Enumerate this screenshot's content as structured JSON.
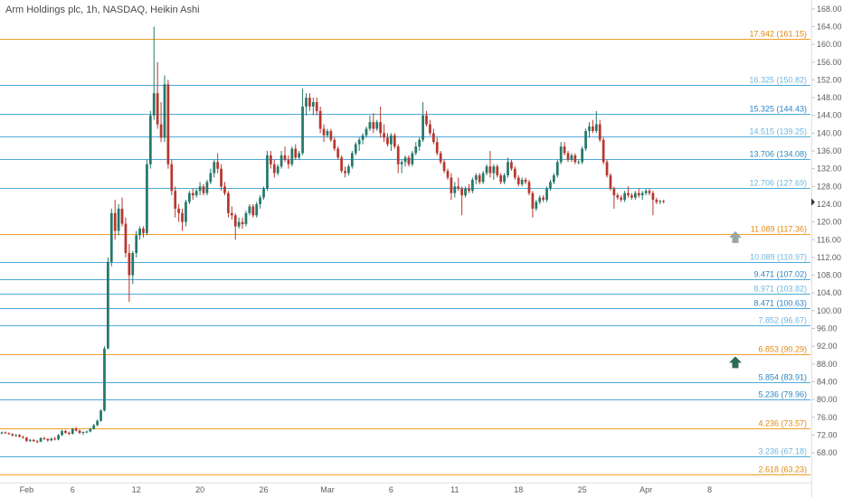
{
  "chart_data": {
    "type": "candlestick",
    "title": "Arm Holdings plc, 1h, NASDAQ, Heikin Ashi",
    "ylim": [
      61.5,
      170
    ],
    "y_ticks": [
      68,
      72,
      76,
      80,
      84,
      88,
      92,
      96,
      100,
      104,
      108,
      112,
      116,
      120,
      124,
      128,
      132,
      136,
      140,
      144,
      148,
      152,
      156,
      160,
      164,
      168
    ],
    "x_ticks": [
      "Feb",
      "6",
      "12",
      "20",
      "26",
      "Mar",
      "6",
      "11",
      "18",
      "25",
      "Apr",
      "8"
    ],
    "x_tick_index": [
      7,
      20,
      38,
      56,
      74,
      92,
      110,
      128,
      146,
      164,
      182,
      200
    ],
    "x_domain": [
      0,
      206
    ],
    "last_price": 124.5,
    "colors": {
      "up": "#26786a",
      "down": "#b5382f",
      "fib_major": "#f0a030",
      "fib_minor": "#4fa9d8",
      "arrow_grey": "#9aa6a2",
      "arrow_green": "#2e6b5a"
    },
    "fib_levels": [
      {
        "ratio": "17.942",
        "price": 161.15,
        "label": "17.942 (161.15)",
        "kind": "major",
        "text_color": "#e08a10"
      },
      {
        "ratio": "16.325",
        "price": 150.82,
        "label": "16.325 (150.82)",
        "kind": "minor",
        "text_color": "#6fb6df"
      },
      {
        "ratio": "15.325",
        "price": 144.43,
        "label": "15.325 (144.43)",
        "kind": "minor",
        "text_color": "#2e86c1"
      },
      {
        "ratio": "14.515",
        "price": 139.25,
        "label": "14.515 (139.25)",
        "kind": "minor",
        "text_color": "#6fb6df"
      },
      {
        "ratio": "13.706",
        "price": 134.08,
        "label": "13.706 (134.08)",
        "kind": "minor",
        "text_color": "#2e86c1"
      },
      {
        "ratio": "12.706",
        "price": 127.69,
        "label": "12.706 (127.69)",
        "kind": "minor",
        "text_color": "#6fb6df"
      },
      {
        "ratio": "11.089",
        "price": 117.36,
        "label": "11.089 (117.36)",
        "kind": "major",
        "text_color": "#e08a10"
      },
      {
        "ratio": "10.089",
        "price": 110.97,
        "label": "10.089 (110.97)",
        "kind": "minor",
        "text_color": "#6fb6df"
      },
      {
        "ratio": "9.471",
        "price": 107.02,
        "label": "9.471 (107.02)",
        "kind": "minor",
        "text_color": "#2e86c1"
      },
      {
        "ratio": "8.971",
        "price": 103.82,
        "label": "8.971 (103.82)",
        "kind": "minor",
        "text_color": "#6fb6df"
      },
      {
        "ratio": "8.471",
        "price": 100.63,
        "label": "8.471 (100.63)",
        "kind": "minor",
        "text_color": "#2e86c1"
      },
      {
        "ratio": "7.852",
        "price": 96.67,
        "label": "7.852 (96.67)",
        "kind": "minor",
        "text_color": "#6fb6df"
      },
      {
        "ratio": "6.853",
        "price": 90.29,
        "label": "6.853 (90.29)",
        "kind": "major",
        "text_color": "#e08a10"
      },
      {
        "ratio": "5.854",
        "price": 83.91,
        "label": "5.854 (83.91)",
        "kind": "minor",
        "text_color": "#2e86c1"
      },
      {
        "ratio": "5.236",
        "price": 79.96,
        "label": "5.236 (79.96)",
        "kind": "minor",
        "text_color": "#2e86c1"
      },
      {
        "ratio": "4.236",
        "price": 73.57,
        "label": "4.236 (73.57)",
        "kind": "major",
        "text_color": "#e08a10"
      },
      {
        "ratio": "3.236",
        "price": 67.18,
        "label": "3.236 (67.18)",
        "kind": "minor",
        "text_color": "#6fb6df"
      },
      {
        "ratio": "2.618",
        "price": 63.23,
        "label": "2.618 (63.23)",
        "kind": "major",
        "text_color": "#e08a10"
      }
    ],
    "arrows": [
      {
        "price": 116.5,
        "color_key": "arrow_grey"
      },
      {
        "price": 88.3,
        "color_key": "arrow_green"
      }
    ],
    "candles": [
      [
        72.5,
        72.8,
        72.1,
        72.6
      ],
      [
        72.6,
        72.8,
        72.3,
        72.4
      ],
      [
        72.4,
        72.6,
        72.1,
        72.2
      ],
      [
        72.2,
        72.4,
        71.7,
        71.9
      ],
      [
        71.9,
        72.2,
        71.6,
        72.0
      ],
      [
        72.0,
        72.2,
        71.5,
        71.6
      ],
      [
        71.6,
        71.8,
        71.2,
        71.4
      ],
      [
        71.4,
        71.6,
        70.4,
        70.7
      ],
      [
        70.7,
        71.1,
        70.4,
        70.9
      ],
      [
        70.9,
        71.1,
        70.5,
        70.6
      ],
      [
        70.6,
        70.9,
        70.2,
        70.5
      ],
      [
        70.5,
        71.5,
        70.4,
        71.3
      ],
      [
        71.3,
        71.6,
        70.9,
        71.1
      ],
      [
        71.1,
        71.3,
        70.5,
        70.8
      ],
      [
        70.8,
        71.4,
        70.6,
        71.2
      ],
      [
        71.2,
        71.6,
        70.8,
        71.0
      ],
      [
        71.0,
        72.2,
        70.8,
        72.0
      ],
      [
        72.0,
        73.2,
        71.8,
        72.9
      ],
      [
        72.9,
        73.2,
        72.3,
        72.5
      ],
      [
        72.5,
        72.8,
        72.0,
        72.3
      ],
      [
        72.3,
        73.6,
        72.1,
        73.4
      ],
      [
        73.4,
        73.8,
        72.8,
        73.0
      ],
      [
        73.0,
        73.2,
        72.2,
        72.5
      ],
      [
        72.5,
        72.8,
        72.0,
        72.7
      ],
      [
        72.7,
        73.0,
        72.4,
        72.8
      ],
      [
        72.8,
        73.6,
        72.6,
        73.4
      ],
      [
        73.4,
        74.5,
        73.2,
        74.2
      ],
      [
        74.2,
        75.5,
        74.0,
        75.2
      ],
      [
        75.2,
        77.8,
        75.0,
        77.5
      ],
      [
        77.5,
        92.0,
        77.3,
        91.5
      ],
      [
        91.5,
        112.0,
        91.3,
        111.0
      ],
      [
        111.0,
        123.0,
        110.0,
        122.0
      ],
      [
        122.0,
        125.0,
        116.0,
        118.0
      ],
      [
        118.0,
        124.0,
        117.0,
        123.0
      ],
      [
        123.0,
        125.5,
        119.0,
        119.6
      ],
      [
        119.6,
        121.0,
        112.0,
        113.0
      ],
      [
        113.0,
        115.0,
        102.0,
        108.0
      ],
      [
        108.0,
        113.5,
        106.0,
        113.0
      ],
      [
        113.0,
        118.0,
        112.0,
        117.0
      ],
      [
        117.0,
        119.0,
        116.0,
        118.5
      ],
      [
        118.5,
        119.0,
        116.5,
        117.5
      ],
      [
        117.5,
        134.0,
        117.0,
        133.0
      ],
      [
        133.0,
        145.0,
        132.0,
        144.0
      ],
      [
        144.0,
        164.0,
        143.0,
        149.0
      ],
      [
        149.0,
        156.0,
        141.0,
        142.0
      ],
      [
        142.0,
        147.0,
        138.0,
        139.0
      ],
      [
        139.0,
        153.0,
        138.0,
        151.0
      ],
      [
        151.0,
        152.0,
        132.0,
        133.0
      ],
      [
        133.0,
        134.0,
        126.0,
        127.0
      ],
      [
        127.0,
        128.0,
        121.0,
        123.0
      ],
      [
        123.0,
        124.0,
        120.0,
        122.0
      ],
      [
        122.0,
        123.0,
        118.0,
        120.0
      ],
      [
        120.0,
        125.0,
        119.0,
        124.5
      ],
      [
        124.5,
        127.0,
        124.0,
        126.5
      ],
      [
        126.5,
        127.5,
        125.0,
        126.0
      ],
      [
        126.0,
        127.5,
        125.5,
        127.0
      ],
      [
        127.0,
        129.0,
        126.0,
        128.0
      ],
      [
        128.0,
        128.5,
        126.0,
        126.5
      ],
      [
        126.5,
        129.5,
        126.0,
        129.0
      ],
      [
        129.0,
        132.0,
        128.5,
        131.0
      ],
      [
        131.0,
        134.0,
        130.0,
        133.5
      ],
      [
        133.5,
        135.5,
        131.0,
        132.0
      ],
      [
        132.0,
        133.0,
        127.0,
        128.0
      ],
      [
        128.0,
        129.0,
        126.0,
        126.5
      ],
      [
        126.5,
        127.0,
        121.0,
        122.0
      ],
      [
        122.0,
        123.5,
        120.5,
        121.5
      ],
      [
        121.5,
        122.0,
        116.0,
        119.0
      ],
      [
        119.0,
        121.0,
        118.5,
        120.0
      ],
      [
        120.0,
        121.0,
        118.5,
        119.5
      ],
      [
        119.5,
        122.5,
        119.0,
        122.0
      ],
      [
        122.0,
        124.0,
        121.5,
        123.5
      ],
      [
        123.5,
        124.0,
        121.0,
        121.5
      ],
      [
        121.5,
        124.5,
        121.0,
        124.0
      ],
      [
        124.0,
        126.0,
        123.0,
        125.5
      ],
      [
        125.5,
        128.0,
        125.0,
        127.5
      ],
      [
        127.5,
        136.0,
        127.0,
        135.0
      ],
      [
        135.0,
        136.0,
        132.0,
        133.0
      ],
      [
        133.0,
        134.0,
        130.0,
        131.0
      ],
      [
        131.0,
        133.0,
        130.5,
        132.5
      ],
      [
        132.5,
        136.0,
        132.0,
        135.0
      ],
      [
        135.0,
        137.0,
        133.5,
        134.0
      ],
      [
        134.0,
        135.0,
        132.0,
        133.0
      ],
      [
        133.0,
        137.0,
        132.5,
        136.5
      ],
      [
        136.5,
        137.5,
        134.0,
        134.5
      ],
      [
        134.5,
        136.0,
        134.0,
        135.5
      ],
      [
        135.5,
        150.0,
        135.0,
        146.0
      ],
      [
        146.0,
        149.0,
        144.0,
        148.0
      ],
      [
        148.0,
        149.0,
        145.0,
        146.0
      ],
      [
        146.0,
        148.0,
        144.0,
        147.0
      ],
      [
        147.0,
        148.0,
        144.0,
        145.0
      ],
      [
        145.0,
        146.0,
        140.0,
        141.0
      ],
      [
        141.0,
        142.0,
        138.0,
        139.5
      ],
      [
        139.5,
        141.0,
        139.0,
        140.5
      ],
      [
        140.5,
        141.0,
        138.0,
        138.5
      ],
      [
        138.5,
        139.0,
        136.0,
        136.5
      ],
      [
        136.5,
        137.0,
        134.0,
        134.5
      ],
      [
        134.5,
        135.0,
        131.0,
        131.5
      ],
      [
        131.5,
        132.5,
        130.0,
        131.0
      ],
      [
        131.0,
        133.0,
        130.5,
        132.5
      ],
      [
        132.5,
        136.0,
        132.0,
        135.5
      ],
      [
        135.5,
        138.0,
        135.0,
        137.5
      ],
      [
        137.5,
        139.0,
        136.0,
        138.5
      ],
      [
        138.5,
        140.0,
        137.5,
        139.5
      ],
      [
        139.5,
        141.5,
        139.0,
        141.0
      ],
      [
        141.0,
        144.0,
        140.5,
        142.5
      ],
      [
        142.5,
        144.5,
        140.0,
        141.0
      ],
      [
        141.0,
        143.0,
        140.5,
        142.5
      ],
      [
        142.5,
        146.0,
        139.0,
        140.0
      ],
      [
        140.0,
        142.0,
        138.0,
        139.0
      ],
      [
        139.0,
        140.0,
        137.0,
        137.5
      ],
      [
        137.5,
        140.0,
        136.0,
        139.5
      ],
      [
        139.5,
        140.0,
        136.5,
        137.0
      ],
      [
        137.0,
        137.5,
        131.0,
        133.0
      ],
      [
        133.0,
        134.0,
        131.0,
        133.5
      ],
      [
        133.5,
        135.0,
        132.5,
        134.5
      ],
      [
        134.5,
        135.0,
        132.5,
        133.0
      ],
      [
        133.0,
        136.0,
        132.5,
        135.5
      ],
      [
        135.5,
        138.0,
        135.0,
        137.0
      ],
      [
        137.0,
        139.0,
        136.0,
        138.5
      ],
      [
        138.5,
        147.0,
        138.0,
        144.0
      ],
      [
        144.0,
        145.0,
        141.5,
        142.0
      ],
      [
        142.0,
        143.0,
        139.5,
        140.0
      ],
      [
        140.0,
        141.0,
        137.5,
        138.0
      ],
      [
        138.0,
        139.0,
        135.0,
        135.5
      ],
      [
        135.5,
        136.0,
        133.0,
        133.5
      ],
      [
        133.5,
        134.0,
        131.0,
        131.5
      ],
      [
        131.5,
        132.0,
        129.5,
        130.0
      ],
      [
        130.0,
        131.0,
        125.0,
        126.5
      ],
      [
        126.5,
        129.0,
        125.5,
        128.0
      ],
      [
        128.0,
        130.0,
        127.0,
        127.5
      ],
      [
        127.5,
        128.0,
        121.5,
        126.0
      ],
      [
        126.0,
        128.0,
        125.5,
        127.5
      ],
      [
        127.5,
        128.5,
        126.5,
        127.0
      ],
      [
        127.0,
        130.0,
        126.5,
        129.5
      ],
      [
        129.5,
        131.0,
        128.5,
        130.5
      ],
      [
        130.5,
        131.0,
        128.5,
        129.0
      ],
      [
        129.0,
        131.5,
        128.5,
        131.0
      ],
      [
        131.0,
        133.0,
        130.5,
        132.5
      ],
      [
        132.5,
        136.0,
        130.0,
        131.0
      ],
      [
        131.0,
        133.0,
        129.5,
        132.5
      ],
      [
        132.5,
        133.0,
        130.0,
        130.5
      ],
      [
        130.5,
        131.0,
        128.5,
        129.0
      ],
      [
        129.0,
        131.0,
        128.5,
        130.5
      ],
      [
        130.5,
        134.5,
        130.0,
        133.5
      ],
      [
        133.5,
        134.0,
        131.5,
        132.0
      ],
      [
        132.0,
        132.5,
        129.5,
        130.0
      ],
      [
        130.0,
        130.5,
        128.0,
        128.5
      ],
      [
        128.5,
        130.0,
        128.0,
        129.5
      ],
      [
        129.5,
        130.0,
        128.5,
        129.0
      ],
      [
        129.0,
        129.5,
        126.0,
        126.5
      ],
      [
        126.5,
        127.0,
        121.0,
        123.0
      ],
      [
        123.0,
        125.0,
        122.5,
        124.5
      ],
      [
        124.5,
        126.0,
        124.0,
        125.5
      ],
      [
        125.5,
        126.0,
        124.5,
        125.0
      ],
      [
        125.0,
        128.0,
        124.5,
        127.5
      ],
      [
        127.5,
        129.5,
        127.0,
        129.0
      ],
      [
        129.0,
        131.0,
        128.5,
        130.5
      ],
      [
        130.5,
        134.0,
        130.0,
        133.5
      ],
      [
        133.5,
        138.0,
        133.0,
        137.0
      ],
      [
        137.0,
        138.0,
        135.0,
        135.5
      ],
      [
        135.5,
        136.0,
        133.5,
        134.0
      ],
      [
        134.0,
        135.5,
        133.5,
        135.0
      ],
      [
        135.0,
        135.5,
        133.0,
        133.5
      ],
      [
        133.5,
        134.0,
        133.0,
        133.5
      ],
      [
        133.5,
        137.0,
        133.0,
        136.5
      ],
      [
        136.5,
        141.0,
        136.0,
        140.5
      ],
      [
        140.5,
        142.5,
        139.0,
        141.5
      ],
      [
        141.5,
        143.0,
        140.0,
        140.5
      ],
      [
        140.5,
        145.0,
        140.0,
        142.0
      ],
      [
        142.0,
        143.0,
        138.0,
        138.5
      ],
      [
        138.5,
        139.0,
        133.0,
        133.5
      ],
      [
        133.5,
        134.0,
        130.0,
        130.5
      ],
      [
        130.5,
        131.0,
        127.0,
        127.5
      ],
      [
        127.5,
        128.0,
        123.0,
        126.0
      ],
      [
        126.0,
        126.5,
        125.0,
        125.5
      ],
      [
        125.5,
        126.0,
        124.5,
        125.0
      ],
      [
        125.0,
        127.0,
        124.5,
        126.5
      ],
      [
        126.5,
        128.0,
        125.5,
        126.0
      ],
      [
        126.0,
        126.5,
        125.0,
        125.5
      ],
      [
        125.5,
        127.0,
        125.0,
        126.5
      ],
      [
        126.5,
        127.5,
        125.5,
        126.0
      ],
      [
        126.0,
        127.0,
        125.0,
        126.5
      ],
      [
        126.5,
        127.5,
        126.0,
        127.0
      ],
      [
        127.0,
        127.5,
        126.0,
        126.5
      ],
      [
        126.5,
        127.0,
        121.5,
        125.0
      ],
      [
        125.0,
        125.5,
        124.0,
        124.5
      ],
      [
        124.5,
        125.0,
        124.0,
        124.7
      ],
      [
        124.7,
        125.0,
        124.2,
        124.5
      ]
    ]
  }
}
